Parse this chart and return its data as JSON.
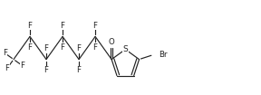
{
  "figsize": [
    2.88,
    1.05
  ],
  "dpi": 100,
  "bg_color": "#ffffff",
  "line_color": "#222222",
  "line_width": 0.85,
  "font_size": 6.2,
  "font_color": "#222222",
  "xlim": [
    0,
    288
  ],
  "ylim": [
    0,
    105
  ]
}
